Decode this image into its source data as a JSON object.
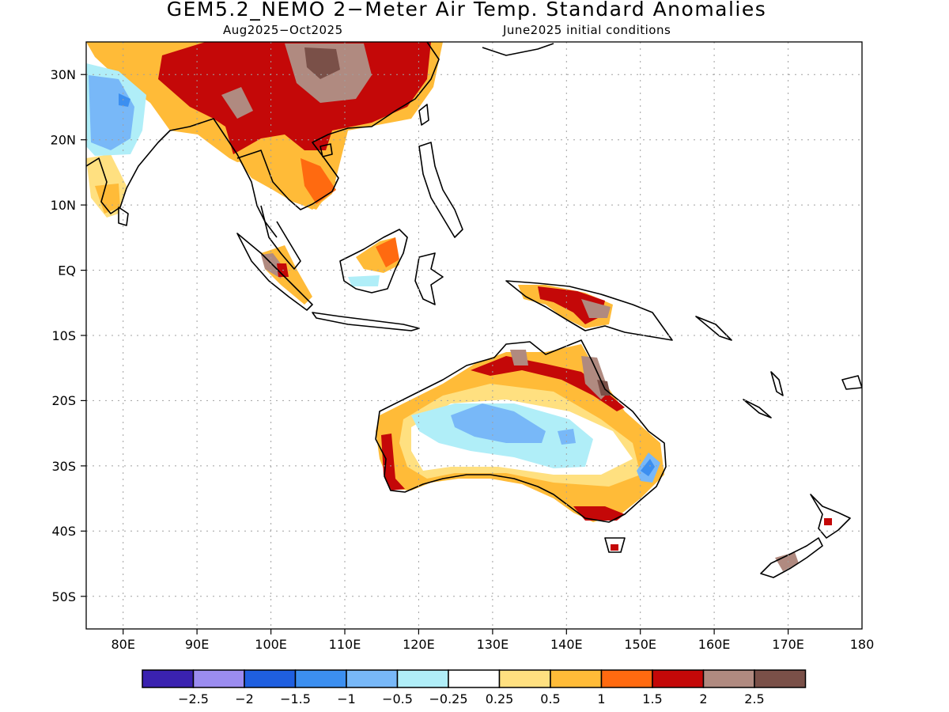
{
  "title": "GEM5.2_NEMO 2−Meter Air Temp. Standard Anomalies",
  "subtitle_left": "Aug2025−Oct2025",
  "subtitle_right": "June2025 initial conditions",
  "map": {
    "lon_range": [
      75,
      180
    ],
    "lat_range": [
      -55,
      35
    ],
    "grid": "dotted",
    "lon_ticks": [
      {
        "value": 80,
        "label": "80E"
      },
      {
        "value": 90,
        "label": "90E"
      },
      {
        "value": 100,
        "label": "100E"
      },
      {
        "value": 110,
        "label": "110E"
      },
      {
        "value": 120,
        "label": "120E"
      },
      {
        "value": 130,
        "label": "130E"
      },
      {
        "value": 140,
        "label": "140E"
      },
      {
        "value": 150,
        "label": "150E"
      },
      {
        "value": 160,
        "label": "160E"
      },
      {
        "value": 170,
        "label": "170E"
      },
      {
        "value": 180,
        "label": "180"
      }
    ],
    "lat_ticks": [
      {
        "value": 30,
        "label": "30N"
      },
      {
        "value": 20,
        "label": "20N"
      },
      {
        "value": 10,
        "label": "10N"
      },
      {
        "value": 0,
        "label": "EQ"
      },
      {
        "value": -10,
        "label": "10S"
      },
      {
        "value": -20,
        "label": "20S"
      },
      {
        "value": -30,
        "label": "30S"
      },
      {
        "value": -40,
        "label": "40S"
      },
      {
        "value": -50,
        "label": "50S"
      }
    ]
  },
  "colorbar": {
    "colors": [
      "#3a22b0",
      "#9b8cf0",
      "#1f5fe0",
      "#3c8ff0",
      "#78b8f8",
      "#b0eef8",
      "#ffffff",
      "#ffe080",
      "#ffbb38",
      "#ff6a10",
      "#c40808",
      "#b08a80",
      "#7a5048"
    ],
    "labels": [
      "−2.5",
      "−2",
      "−1.5",
      "−1",
      "−0.5",
      "−0.25",
      "0.25",
      "0.5",
      "1",
      "1.5",
      "2",
      "2.5"
    ]
  },
  "anomaly_fields": [
    {
      "name": "Tibetan Plateau / China",
      "level": "≥2.5"
    },
    {
      "name": "South and East China",
      "level": "1.5–2"
    },
    {
      "name": "Northwest India",
      "level": "−1 to −0.5"
    },
    {
      "name": "Indochina",
      "level": "0.5–1.5"
    },
    {
      "name": "Sumatra",
      "level": "2–2.5"
    },
    {
      "name": "Borneo",
      "level": "1–1.5"
    },
    {
      "name": "New Guinea",
      "level": "1.5–2.5"
    },
    {
      "name": "Interior Australia",
      "level": "−1 to −0.5"
    },
    {
      "name": "Coastal Australia",
      "level": "0.5–1"
    },
    {
      "name": "Northern Australia coast",
      "level": "1.5–2.5"
    },
    {
      "name": "Eastern Australia",
      "level": "−1"
    },
    {
      "name": "New Zealand",
      "level": "2–2.5"
    }
  ]
}
